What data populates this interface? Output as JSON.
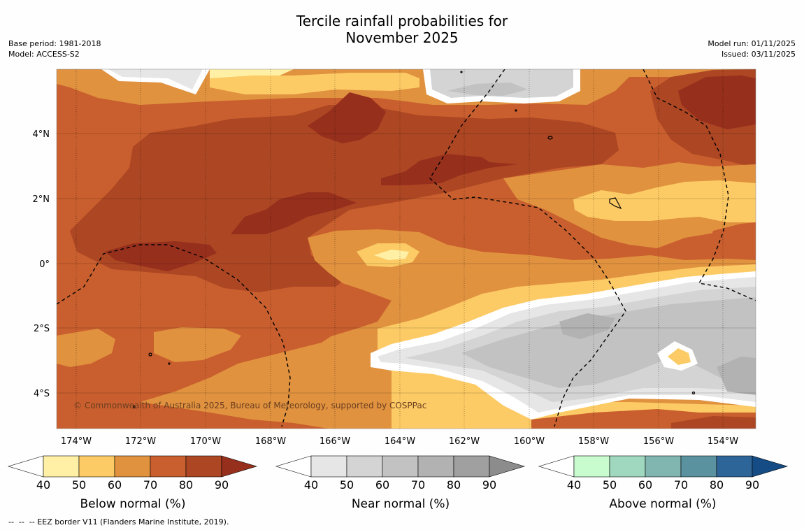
{
  "title_line1": "Tercile rainfall probabilities for",
  "title_line2": "November 2025",
  "base_period": "Base period: 1981-2018",
  "model": "Model: ACCESS-S2",
  "model_run": "Model run: 01/11/2025",
  "issued": "Issued: 03/11/2025",
  "map": {
    "lon_labels": [
      "174°W",
      "172°W",
      "170°W",
      "168°W",
      "166°W",
      "164°W",
      "162°W",
      "160°W",
      "158°W",
      "156°W",
      "154°W"
    ],
    "lat_labels": [
      "4°N",
      "2°N",
      "0°",
      "2°S",
      "4°S"
    ],
    "copyright": "© Commonwealth of Australia 2025, Bureau of Meteorology, supported by COSPPac",
    "colors": {
      "below": [
        "#fff0a6",
        "#fdcb65",
        "#e0923f",
        "#c95f2e",
        "#ac4623",
        "#962f1c"
      ],
      "near": [
        "#e6e6e6",
        "#d4d4d4",
        "#c2c2c2",
        "#b2b2b2",
        "#a0a0a0",
        "#8c8c8c"
      ],
      "above": [
        "#c8fbcd",
        "#a0d8bf",
        "#80b5b0",
        "#5a92a0",
        "#2e6598",
        "#154c85"
      ]
    }
  },
  "colorbars": [
    {
      "label": "Below normal (%)",
      "ticks": [
        "40",
        "50",
        "60",
        "70",
        "80",
        "90"
      ]
    },
    {
      "label": "Near normal (%)",
      "ticks": [
        "40",
        "50",
        "60",
        "70",
        "80",
        "90"
      ]
    },
    {
      "label": "Above normal (%)",
      "ticks": [
        "40",
        "50",
        "60",
        "70",
        "80",
        "90"
      ]
    }
  ],
  "footnote": "--  --  -- EEZ border V11 (Flanders Marine Institute, 2019)."
}
